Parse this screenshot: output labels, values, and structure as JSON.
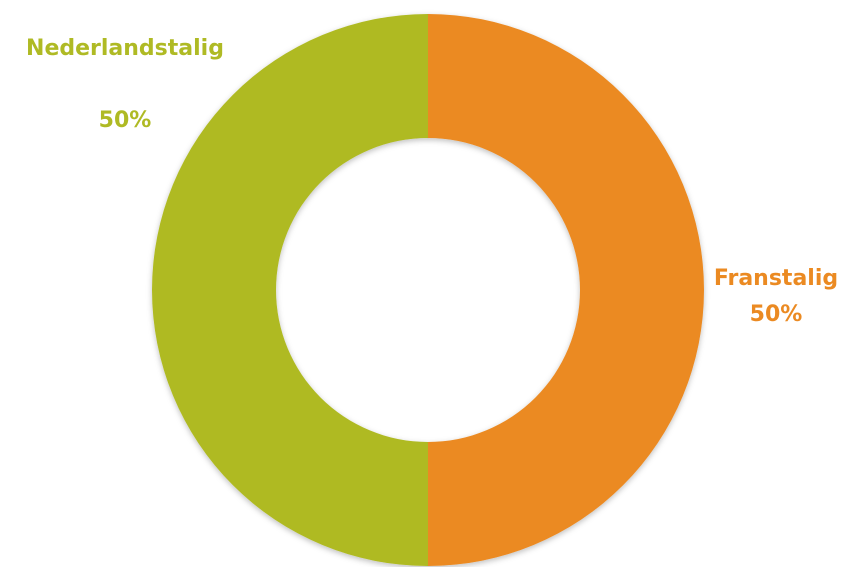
{
  "chart_data": {
    "type": "pie",
    "donut": true,
    "categories": [
      "Franstalig",
      "Nederlandstalig"
    ],
    "values": [
      50,
      50
    ],
    "value_labels": [
      "50%",
      "50%"
    ],
    "colors": [
      "#EB8A22",
      "#AFBA24"
    ],
    "title": "",
    "legend": "none"
  }
}
